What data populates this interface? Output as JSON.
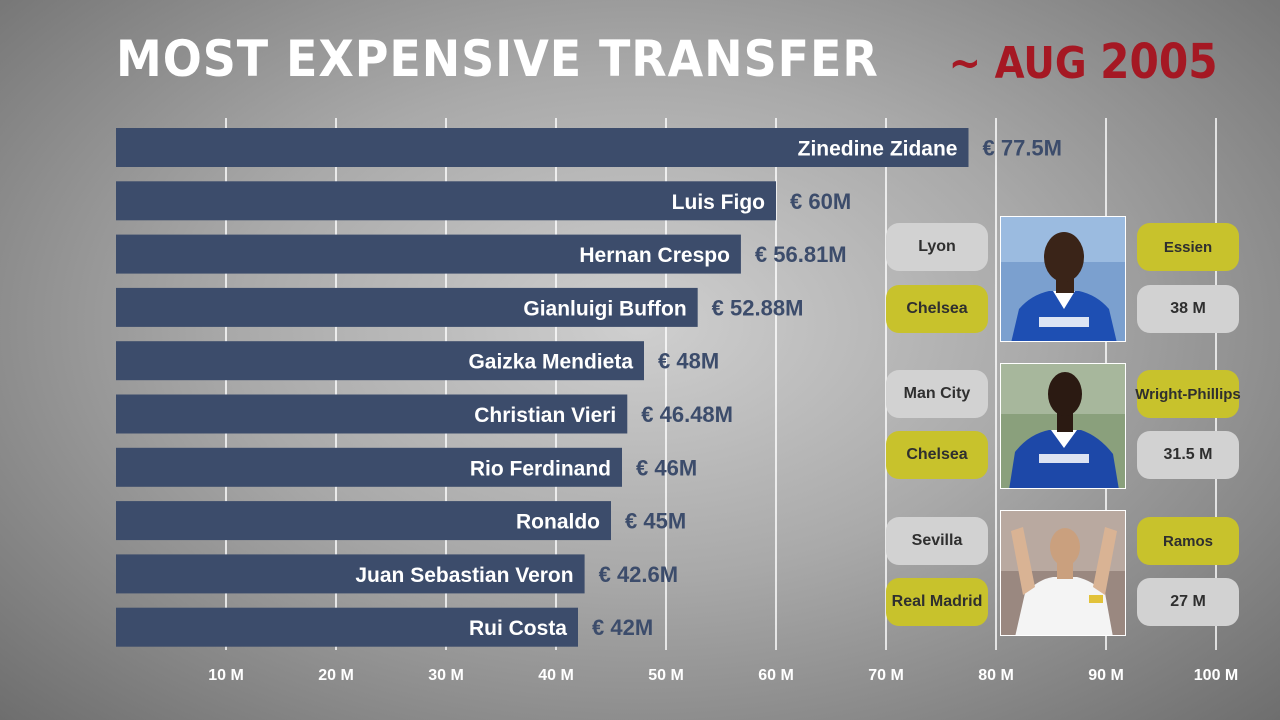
{
  "header": {
    "title": "MOST EXPENSIVE TRANSFER",
    "date_prefix": "~ AUG",
    "date_year": "2005"
  },
  "chart_data": {
    "type": "bar",
    "orientation": "horizontal",
    "title": "MOST EXPENSIVE TRANSFER",
    "categories": [
      "Zinedine Zidane",
      "Luis Figo",
      "Hernan Crespo",
      "Gianluigi Buffon",
      "Gaizka Mendieta",
      "Christian Vieri",
      "Rio Ferdinand",
      "Ronaldo",
      "Juan Sebastian Veron",
      "Rui Costa"
    ],
    "values": [
      77.5,
      60,
      56.81,
      52.88,
      48,
      46.48,
      46,
      45,
      42.6,
      42
    ],
    "value_labels": [
      "€ 77.5M",
      "€ 60M",
      "€ 56.81M",
      "€ 52.88M",
      "€ 48M",
      "€ 46.48M",
      "€ 46M",
      "€ 45M",
      "€ 42.6M",
      "€ 42M"
    ],
    "xlim": [
      0,
      100
    ],
    "xticks": [
      10,
      20,
      30,
      40,
      50,
      60,
      70,
      80,
      90,
      100
    ],
    "xtick_labels": [
      "10 M",
      "20 M",
      "30 M",
      "40 M",
      "50 M",
      "60 M",
      "70 M",
      "80 M",
      "90 M",
      "100 M"
    ],
    "grid": true,
    "colors": {
      "bar": "#3c4c6b",
      "grid": "#ffffff",
      "value_text": "#3c4c6b"
    }
  },
  "transfers": [
    {
      "from": "Lyon",
      "to": "Chelsea",
      "player": "Essien",
      "fee": "38 M",
      "photo": "player-photo-essien"
    },
    {
      "from": "Man City",
      "to": "Chelsea",
      "player": "Wright-Phillips",
      "fee": "31.5 M",
      "photo": "player-photo-wright-phillips"
    },
    {
      "from": "Sevilla",
      "to": "Real Madrid",
      "player": "Ramos",
      "fee": "27 M",
      "photo": "player-photo-ramos"
    }
  ],
  "colors": {
    "title": "#ffffff",
    "date": "#a51823",
    "pill_grey": "#d2d2d2",
    "pill_yellow": "#c8c22c"
  }
}
